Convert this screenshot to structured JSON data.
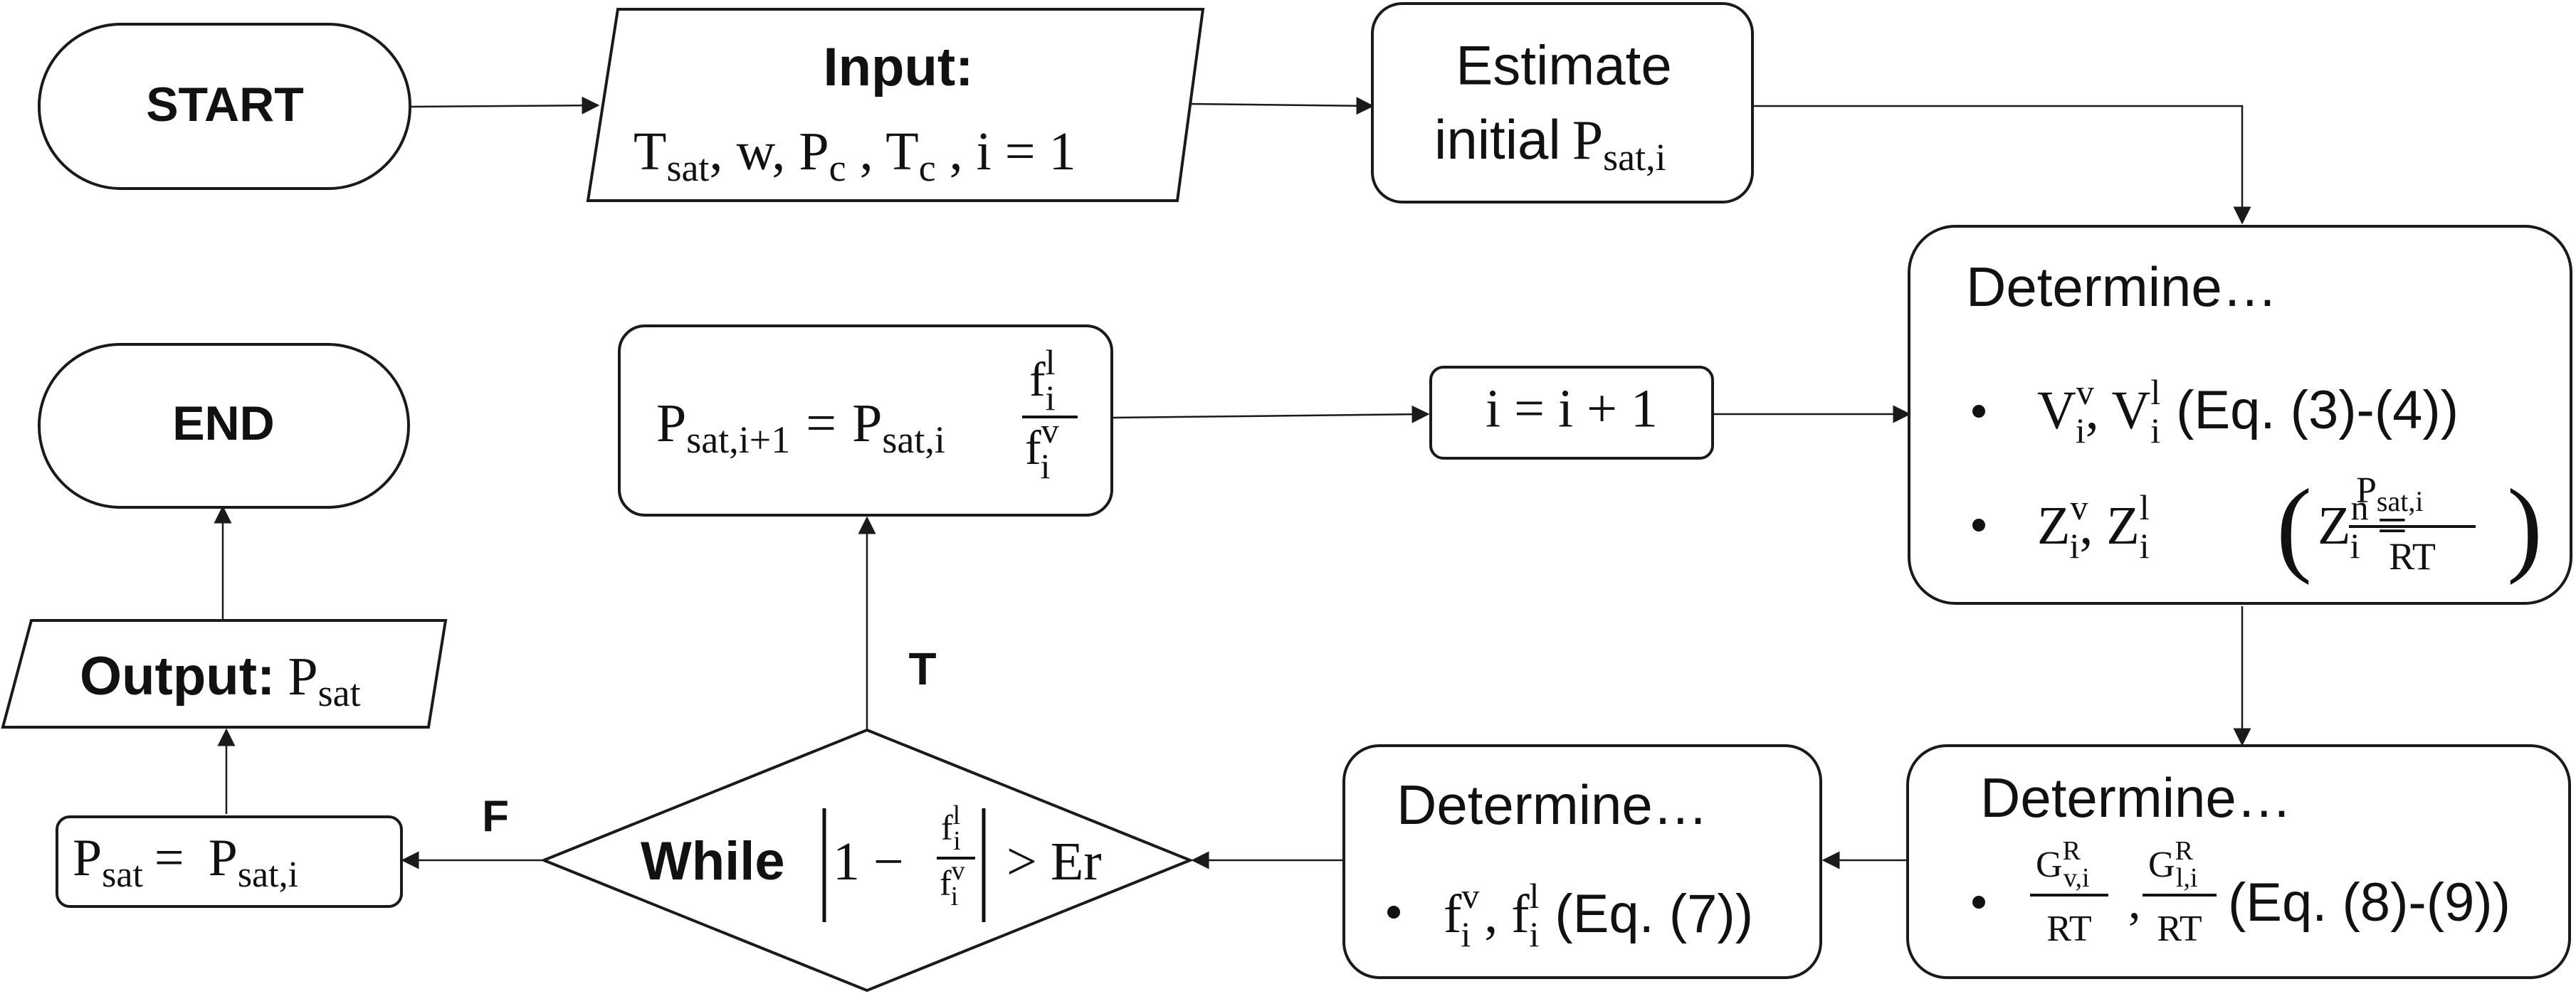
{
  "nodes": {
    "start": {
      "label": "START"
    },
    "input": {
      "title": "Input:",
      "T": "T",
      "sat": "sat",
      "w": ", w, P",
      "c1": "c",
      "comma": " , T",
      "c2": "c",
      "tail": " , i = 1"
    },
    "estimate": {
      "line1": "Estimate",
      "line2": "initial",
      "P": "P",
      "sub": "sat,i"
    },
    "determine_vz": {
      "title": "Determine…",
      "bullet1": {
        "V": "V",
        "sub_i": "i",
        "sup_v": "v",
        "sup_l": "l",
        "ref": "(Eq. (3)-(4))"
      },
      "bullet2": {
        "Z": "Z",
        "sub_i": "i",
        "sup_v": "v",
        "sup_l": "l",
        "sup_n": "n",
        "eq": "=",
        "P": "P",
        "P_sub": "sat,i",
        "RT": "RT"
      }
    },
    "determine_g": {
      "title": "Determine…",
      "G": "G",
      "sup_R": "R",
      "sub_v": "v,i",
      "sub_l": "l,i",
      "RT": "RT",
      "ref": "(Eq. (8)-(9))"
    },
    "determine_f": {
      "title": "Determine…",
      "f": "f",
      "sub_i": "i",
      "sup_v": "v",
      "sup_l": "l",
      "ref": "(Eq. (7))"
    },
    "while": {
      "keyword": "While",
      "one_minus": "1 −",
      "f": "f",
      "sub_i": "i",
      "sup_l": "l",
      "sup_v": "v",
      "gt": "> Er"
    },
    "update_p": {
      "P": "P",
      "lhs_sub": "sat,i+1",
      "eq": "=",
      "rhs_sub": "sat,i",
      "f": "f",
      "sub_i": "i",
      "sup_l": "l",
      "sup_v": "v"
    },
    "increment": {
      "label": "i = i + 1"
    },
    "assign_out": {
      "P": "P",
      "lhs_sub": "sat",
      "eq": "=",
      "rhs_sub": "sat,i"
    },
    "output": {
      "title": "Output:",
      "P": "P",
      "sub": "sat"
    },
    "end": {
      "label": "END"
    }
  },
  "branches": {
    "true_label": "T",
    "false_label": "F"
  },
  "colors": {
    "true_label": "#1f73c0",
    "false_label": "#b3201e",
    "stroke": "#1a1a1a"
  }
}
